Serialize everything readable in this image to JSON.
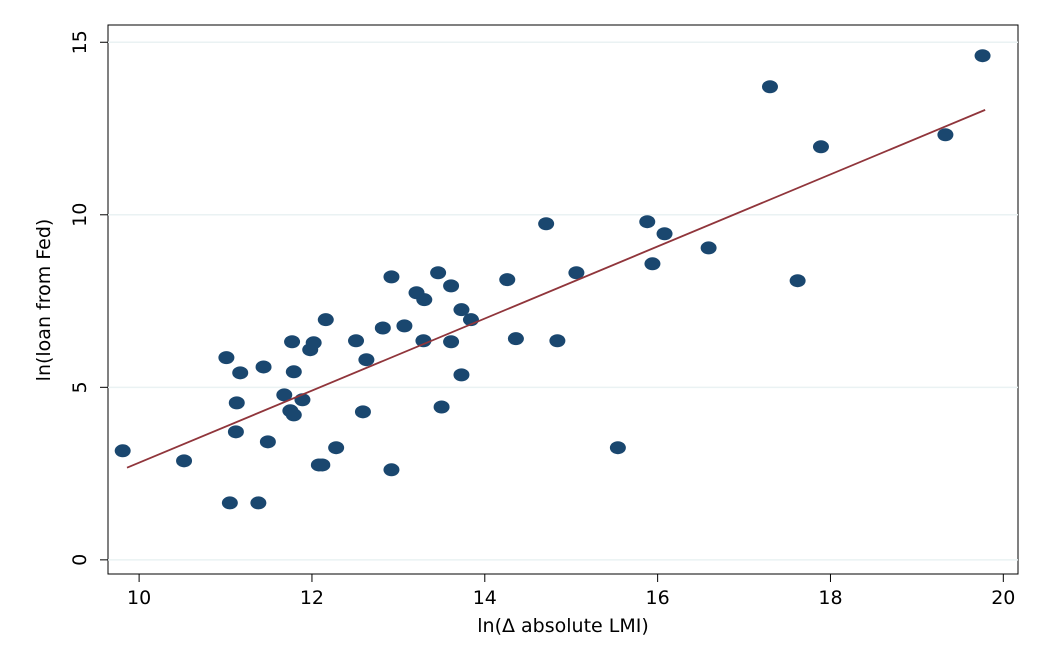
{
  "chart_data": {
    "type": "scatter",
    "x_label": "ln(Δ absolute LMI)",
    "y_label": "ln(loan from Fed)",
    "x": [
      9.81,
      10.52,
      11.01,
      11.17,
      11.05,
      11.13,
      11.12,
      11.38,
      11.44,
      11.49,
      11.68,
      11.77,
      11.75,
      11.79,
      11.79,
      11.89,
      11.98,
      12.02,
      12.08,
      12.12,
      12.16,
      12.28,
      12.51,
      12.63,
      12.59,
      12.82,
      12.92,
      12.92,
      13.07,
      13.21,
      13.3,
      13.29,
      13.46,
      13.5,
      13.61,
      13.61,
      13.73,
      13.73,
      13.84,
      14.26,
      14.36,
      14.71,
      14.84,
      15.06,
      15.54,
      15.88,
      15.94,
      16.08,
      16.59,
      17.3,
      17.62,
      17.89,
      19.33,
      19.76
    ],
    "y": [
      3.16,
      2.87,
      5.86,
      5.42,
      1.65,
      4.55,
      3.71,
      1.65,
      5.59,
      3.42,
      4.78,
      6.32,
      4.32,
      4.2,
      5.45,
      4.64,
      6.09,
      6.29,
      2.75,
      2.75,
      6.96,
      3.25,
      6.35,
      5.8,
      4.29,
      6.72,
      8.2,
      2.61,
      6.78,
      7.74,
      7.54,
      6.35,
      8.32,
      4.43,
      7.94,
      6.32,
      7.25,
      5.36,
      6.96,
      8.12,
      6.41,
      9.74,
      6.35,
      8.32,
      3.25,
      9.8,
      8.58,
      9.45,
      9.04,
      13.71,
      8.09,
      11.97,
      12.32,
      14.61
    ],
    "color": "#1a476f",
    "fit": {
      "x": [
        9.86,
        19.79
      ],
      "y": [
        2.67,
        13.04
      ],
      "color": "#90353b"
    },
    "xlim": [
      9.64,
      20.17
    ],
    "ylim": [
      -0.41,
      15.5
    ],
    "xticks": [
      10,
      12,
      14,
      16,
      18,
      20
    ],
    "yticks": [
      0,
      5,
      10,
      15
    ],
    "grid": true
  }
}
